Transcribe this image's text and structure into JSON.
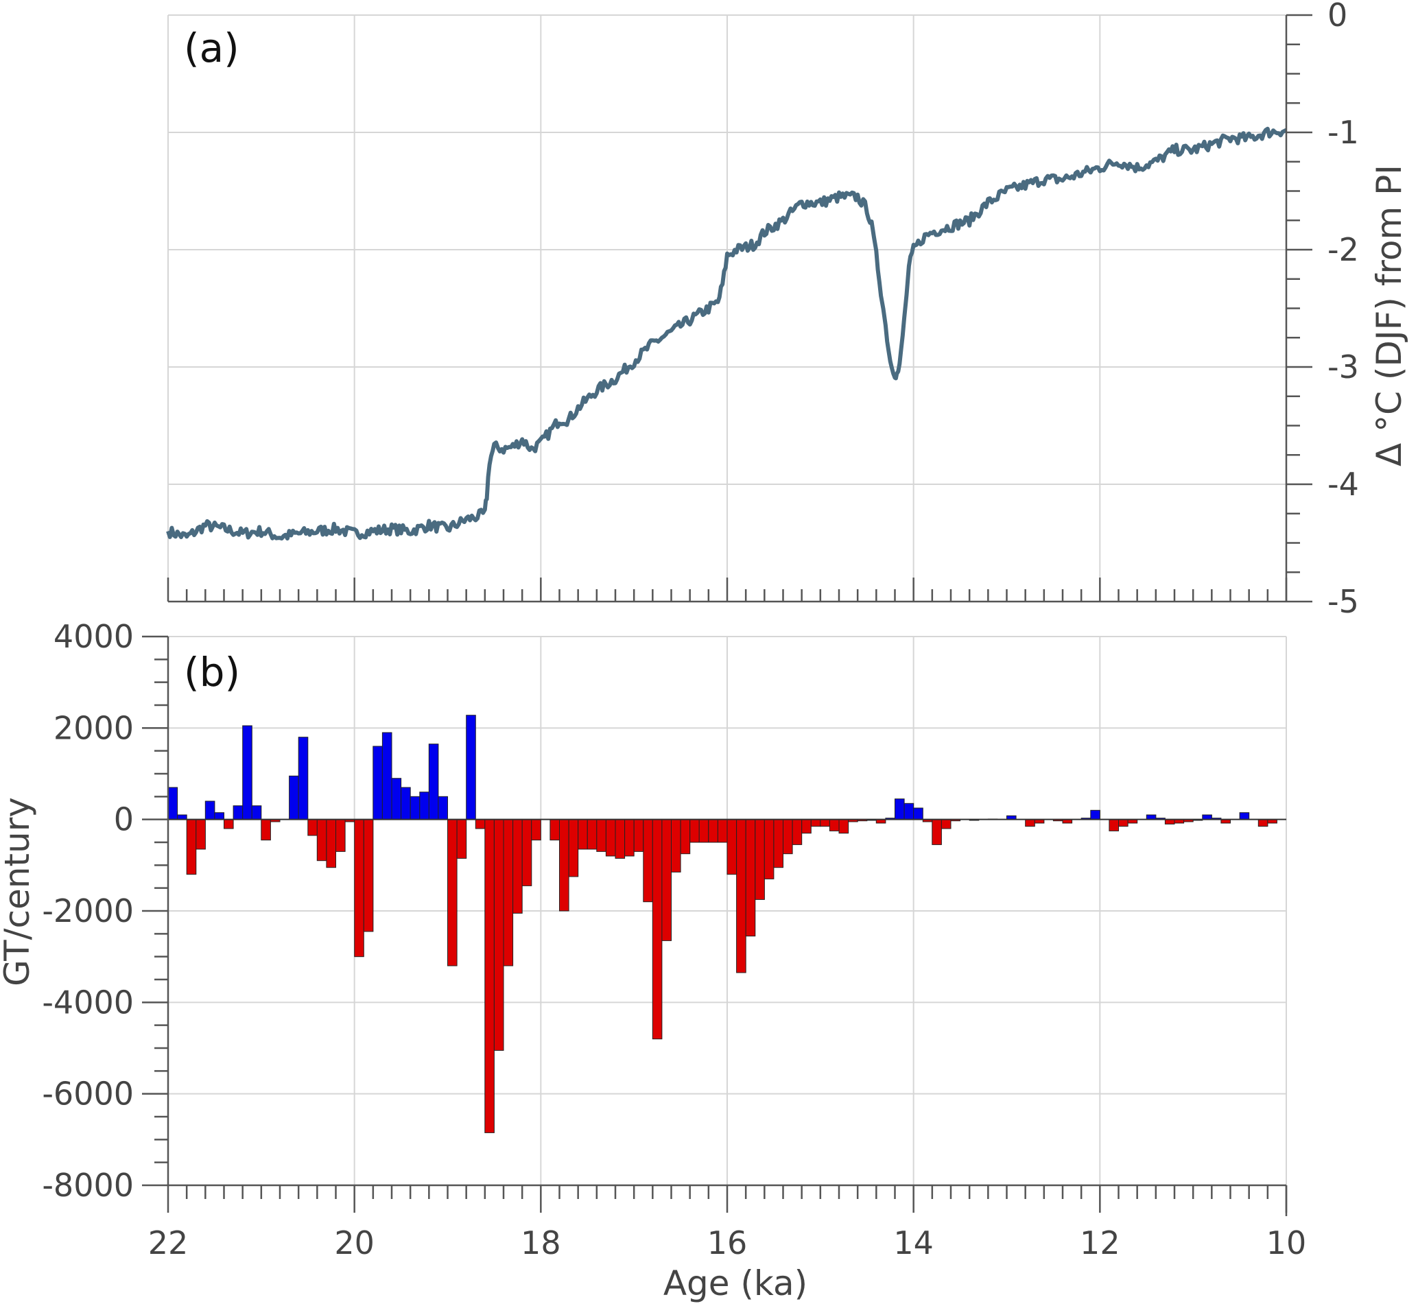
{
  "chart_data": [
    {
      "panel": "(a)",
      "type": "line",
      "xlabel": "",
      "ylabel": "Δ °C (DJF) from PI",
      "xlim": [
        22,
        10
      ],
      "ylim": [
        -5,
        0
      ],
      "y_ticks": [
        0,
        -1,
        -2,
        -3,
        -4,
        -5
      ],
      "grid": true,
      "line_color": "#4a6b80",
      "series": [
        {
          "x": [
            22.0,
            21.8,
            21.6,
            21.4,
            21.2,
            21.0,
            20.8,
            20.6,
            20.4,
            20.2,
            20.0,
            19.8,
            19.6,
            19.4,
            19.2,
            19.0,
            18.8,
            18.7,
            18.6,
            18.58,
            18.55,
            18.5,
            18.4,
            18.3,
            18.2,
            18.1,
            18.0,
            17.9,
            17.8,
            17.7,
            17.6,
            17.4,
            17.3,
            17.2,
            17.0,
            16.8,
            16.6,
            16.4,
            16.2,
            16.1,
            16.05,
            16.0,
            15.9,
            15.8,
            15.7,
            15.6,
            15.5,
            15.4,
            15.2,
            15.0,
            14.8,
            14.6,
            14.5,
            14.45,
            14.4,
            14.35,
            14.3,
            14.25,
            14.2,
            14.18,
            14.15,
            14.1,
            14.05,
            14.0,
            13.95,
            13.9,
            13.8,
            13.6,
            13.4,
            13.2,
            13.0,
            12.8,
            12.6,
            12.4,
            12.2,
            12.0,
            11.8,
            11.6,
            11.4,
            11.2,
            11.0,
            10.8,
            10.6,
            10.4,
            10.2,
            10.0
          ],
          "y": [
            -4.4,
            -4.45,
            -4.35,
            -4.38,
            -4.42,
            -4.4,
            -4.45,
            -4.42,
            -4.4,
            -4.38,
            -4.42,
            -4.4,
            -4.38,
            -4.4,
            -4.35,
            -4.38,
            -4.3,
            -4.28,
            -4.25,
            -4.1,
            -3.8,
            -3.68,
            -3.7,
            -3.68,
            -3.62,
            -3.7,
            -3.65,
            -3.55,
            -3.45,
            -3.45,
            -3.35,
            -3.2,
            -3.15,
            -3.1,
            -2.95,
            -2.8,
            -2.7,
            -2.6,
            -2.5,
            -2.45,
            -2.3,
            -2.05,
            -2.0,
            -1.98,
            -1.95,
            -1.85,
            -1.8,
            -1.75,
            -1.6,
            -1.6,
            -1.55,
            -1.55,
            -1.65,
            -1.8,
            -2.05,
            -2.35,
            -2.65,
            -2.95,
            -3.05,
            -3.07,
            -3.0,
            -2.6,
            -2.15,
            -2.0,
            -1.95,
            -1.9,
            -1.85,
            -1.8,
            -1.75,
            -1.6,
            -1.5,
            -1.45,
            -1.4,
            -1.4,
            -1.35,
            -1.3,
            -1.25,
            -1.3,
            -1.25,
            -1.15,
            -1.15,
            -1.1,
            -1.05,
            -1.05,
            -1.0,
            -0.98
          ]
        }
      ]
    },
    {
      "panel": "(b)",
      "type": "bar",
      "xlabel": "Age (ka)",
      "ylabel": "GT/century",
      "xlim": [
        22,
        10
      ],
      "ylim": [
        -8000,
        4000
      ],
      "x_ticks": [
        22,
        20,
        18,
        16,
        14,
        12,
        10
      ],
      "y_ticks": [
        4000,
        2000,
        0,
        -2000,
        -4000,
        -6000,
        -8000
      ],
      "grid": true,
      "positive_color": "#0000ee",
      "negative_color": "#dd0000",
      "bin_width_ka": 0.1,
      "x_start": 22.0,
      "values": [
        700,
        100,
        -1200,
        -650,
        400,
        150,
        -200,
        300,
        2050,
        300,
        -450,
        -50,
        0,
        950,
        1800,
        -350,
        -900,
        -1050,
        -700,
        -50,
        -3000,
        -2450,
        1600,
        1900,
        900,
        700,
        500,
        600,
        1650,
        500,
        -3200,
        -850,
        2280,
        -200,
        -6850,
        -5050,
        -3200,
        -2050,
        -1450,
        -450,
        0,
        -450,
        -2000,
        -1250,
        -650,
        -650,
        -700,
        -800,
        -850,
        -800,
        -700,
        -1800,
        -4800,
        -2650,
        -1150,
        -750,
        -500,
        -500,
        -500,
        -500,
        -1200,
        -3350,
        -2550,
        -1750,
        -1300,
        -1050,
        -750,
        -550,
        -300,
        -150,
        -150,
        -250,
        -300,
        -50,
        -30,
        -20,
        -80,
        30,
        450,
        350,
        250,
        -50,
        -550,
        -200,
        -30,
        0,
        -20,
        0,
        10,
        0,
        80,
        0,
        -150,
        -80,
        0,
        -30,
        -80,
        0,
        30,
        200,
        0,
        -250,
        -150,
        -80,
        0,
        100,
        30,
        -100,
        -80,
        -50,
        -20,
        100,
        30,
        -80,
        0,
        150,
        0,
        -150,
        -80,
        0,
        0,
        0,
        10,
        0,
        -50,
        0
      ]
    }
  ],
  "panel_labels": {
    "a": "(a)",
    "b": "(b)"
  },
  "axes": {
    "top_ylabel": "Δ °C (DJF) from PI",
    "bottom_ylabel": "GT/century",
    "xlabel": "Age (ka)"
  }
}
